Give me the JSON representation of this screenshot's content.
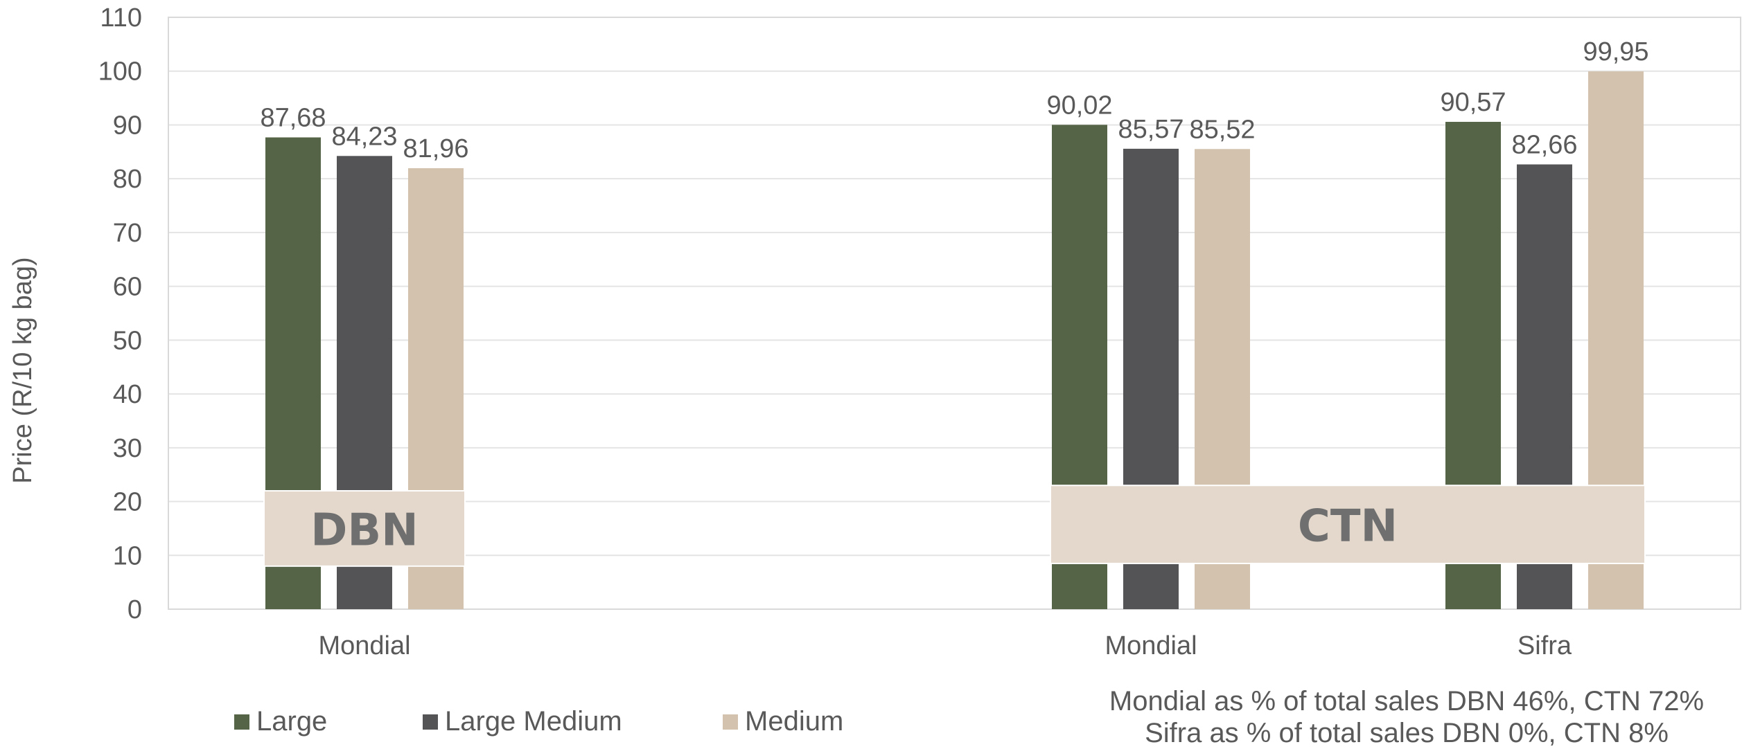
{
  "chart_data": {
    "type": "bar",
    "ylabel": "Price (R/10 kg bag)",
    "ylim": [
      0,
      110
    ],
    "yticks": [
      0,
      10,
      20,
      30,
      40,
      50,
      60,
      70,
      80,
      90,
      100,
      110
    ],
    "grid": true,
    "categories": [
      "Mondial",
      "Mondial",
      "Sifra"
    ],
    "series": [
      {
        "name": "Large",
        "color": "#556446",
        "values": [
          87.68,
          90.02,
          90.57
        ],
        "labels": [
          "87,68",
          "90,02",
          "90,57"
        ]
      },
      {
        "name": "Large Medium",
        "color": "#545456",
        "values": [
          84.23,
          85.57,
          82.66
        ],
        "labels": [
          "84,23",
          "85,57",
          "82,66"
        ]
      },
      {
        "name": "Medium",
        "color": "#d3c2ad",
        "values": [
          81.96,
          85.52,
          99.95
        ],
        "labels": [
          "81,96",
          "85,52",
          "99,95"
        ]
      }
    ],
    "group_labels": [
      {
        "text": "DBN",
        "categories": [
          0
        ]
      },
      {
        "text": "CTN",
        "categories": [
          1,
          2
        ]
      }
    ],
    "legend_position": "bottom-left"
  },
  "notes": [
    "Mondial as % of total sales DBN 46%, CTN 72%",
    "Sifra as % of total sales DBN 0%, CTN 8%"
  ]
}
